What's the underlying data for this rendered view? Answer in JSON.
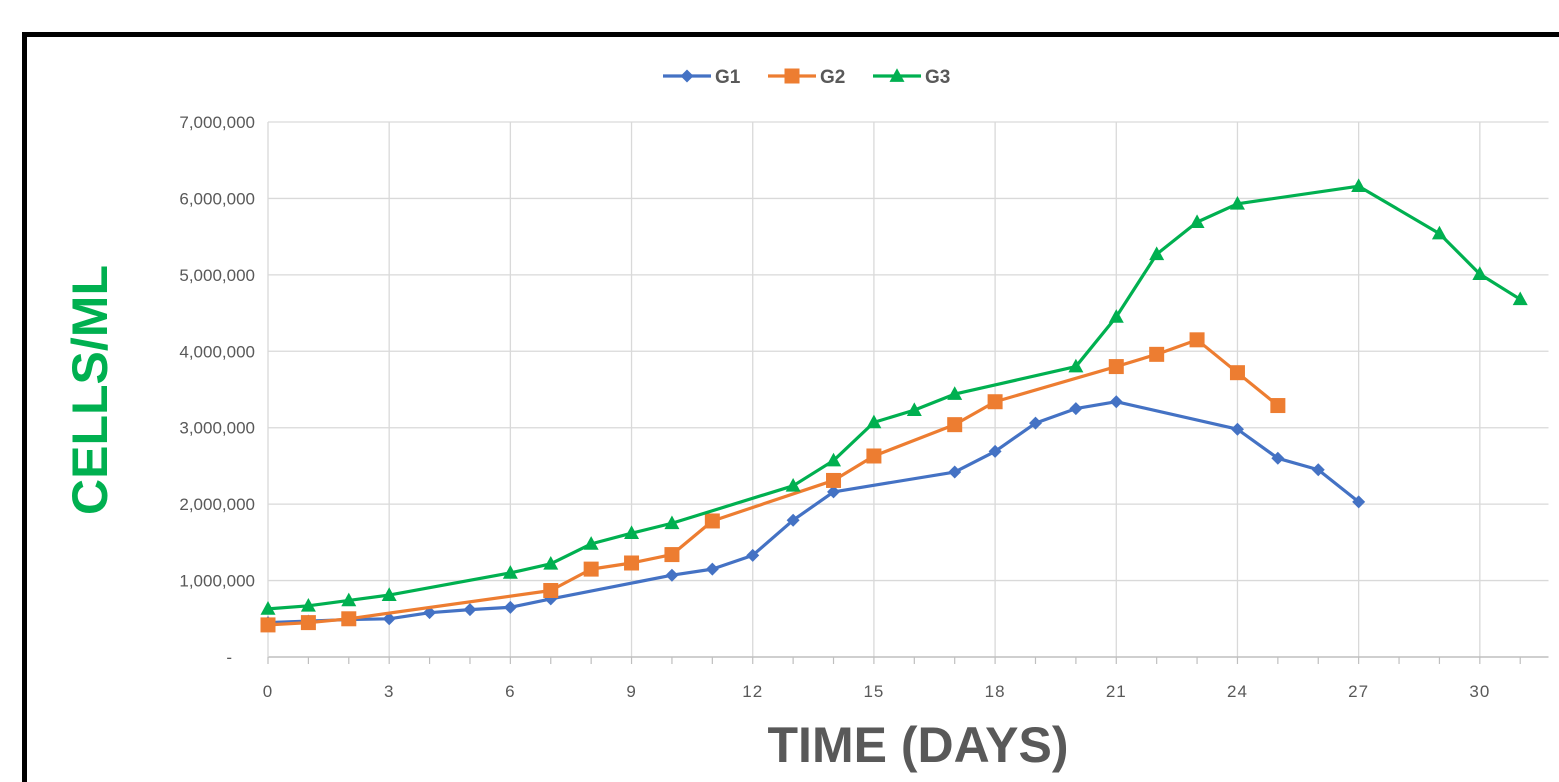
{
  "chart_data": {
    "type": "line",
    "xlabel": "TIME (DAYS)",
    "ylabel": "CELLS/ML",
    "xlim": [
      0,
      31.7
    ],
    "ylim": [
      0,
      7000000
    ],
    "x_ticks": [
      "0",
      "3",
      "6",
      "9",
      "12",
      "15",
      "18",
      "21",
      "24",
      "27",
      "30"
    ],
    "y_ticks": [
      "-",
      "1,000,000",
      "2,000,000",
      "3,000,000",
      "4,000,000",
      "5,000,000",
      "6,000,000",
      "7,000,000"
    ],
    "grid": true,
    "legend_position": "top-center",
    "series": [
      {
        "name": "G1",
        "color": "#4472C4",
        "marker": "diamond",
        "points": [
          [
            0,
            450000
          ],
          [
            1,
            470000
          ],
          [
            2,
            490000
          ],
          [
            3,
            500000
          ],
          [
            4,
            580000
          ],
          [
            5,
            620000
          ],
          [
            6,
            650000
          ],
          [
            7,
            760000
          ],
          [
            10,
            1070000
          ],
          [
            11,
            1150000
          ],
          [
            12,
            1330000
          ],
          [
            13,
            1790000
          ],
          [
            14,
            2160000
          ],
          [
            17,
            2420000
          ],
          [
            18,
            2690000
          ],
          [
            19,
            3060000
          ],
          [
            20,
            3250000
          ],
          [
            21,
            3340000
          ],
          [
            24,
            2980000
          ],
          [
            25,
            2600000
          ],
          [
            26,
            2450000
          ],
          [
            27,
            2030000
          ]
        ]
      },
      {
        "name": "G2",
        "color": "#ED7D31",
        "marker": "square",
        "points": [
          [
            0,
            420000
          ],
          [
            1,
            450000
          ],
          [
            2,
            500000
          ],
          [
            7,
            870000
          ],
          [
            8,
            1150000
          ],
          [
            9,
            1230000
          ],
          [
            10,
            1340000
          ],
          [
            11,
            1780000
          ],
          [
            14,
            2310000
          ],
          [
            15,
            2630000
          ],
          [
            17,
            3040000
          ],
          [
            18,
            3340000
          ],
          [
            21,
            3800000
          ],
          [
            22,
            3960000
          ],
          [
            23,
            4150000
          ],
          [
            24,
            3720000
          ],
          [
            25,
            3290000
          ]
        ]
      },
      {
        "name": "G3",
        "color": "#00B050",
        "marker": "triangle",
        "points": [
          [
            0,
            630000
          ],
          [
            1,
            670000
          ],
          [
            2,
            740000
          ],
          [
            3,
            810000
          ],
          [
            6,
            1100000
          ],
          [
            7,
            1220000
          ],
          [
            8,
            1480000
          ],
          [
            9,
            1620000
          ],
          [
            10,
            1750000
          ],
          [
            13,
            2240000
          ],
          [
            14,
            2570000
          ],
          [
            15,
            3070000
          ],
          [
            16,
            3230000
          ],
          [
            17,
            3440000
          ],
          [
            20,
            3800000
          ],
          [
            21,
            4450000
          ],
          [
            22,
            5270000
          ],
          [
            23,
            5690000
          ],
          [
            24,
            5930000
          ],
          [
            27,
            6160000
          ],
          [
            29,
            5540000
          ],
          [
            30,
            5010000
          ],
          [
            31,
            4680000
          ]
        ]
      }
    ]
  },
  "colors": {
    "ylabel": "#00B050",
    "grid": "#D9D9D9",
    "axis": "#BFBFBF"
  }
}
